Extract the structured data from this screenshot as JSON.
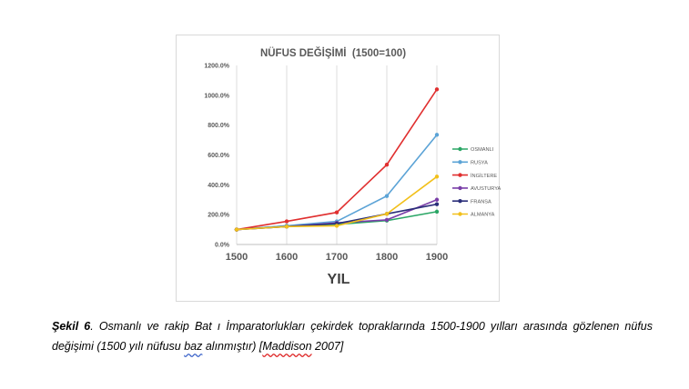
{
  "chart_data": {
    "type": "line",
    "title": "NÜFUS DEĞİŞİMİ  (1500=100)",
    "xlabel": "YIL",
    "ylabel": "",
    "x": [
      1500,
      1600,
      1700,
      1800,
      1900
    ],
    "x_ticks": [
      "1500",
      "1600",
      "1700",
      "1800",
      "1900"
    ],
    "ylim": [
      0,
      1200
    ],
    "y_ticks": [
      0,
      200,
      400,
      600,
      800,
      1000,
      1200
    ],
    "y_tick_labels": [
      "0.0%",
      "200.0%",
      "400.0%",
      "600.0%",
      "800.0%",
      "1000.0%",
      "1200.0%"
    ],
    "grid": "vertical",
    "legend_position": "right",
    "series": [
      {
        "name": "OSMANLI",
        "color": "#2aa665",
        "values": [
          100,
          125,
          135,
          160,
          220
        ]
      },
      {
        "name": "RUSYA",
        "color": "#5ba3d6",
        "values": [
          100,
          125,
          155,
          325,
          735
        ]
      },
      {
        "name": "İNGİLTERE",
        "color": "#e02f2f",
        "values": [
          100,
          155,
          215,
          535,
          1040
        ]
      },
      {
        "name": "AVUSTURYA",
        "color": "#7a3fa8",
        "values": [
          100,
          120,
          145,
          165,
          300
        ]
      },
      {
        "name": "FRANSA",
        "color": "#2b2f7a",
        "values": [
          100,
          120,
          140,
          205,
          270
        ]
      },
      {
        "name": "ALMANYA",
        "color": "#f2c01b",
        "values": [
          100,
          120,
          125,
          205,
          455
        ]
      }
    ]
  },
  "caption": {
    "label": "Şekil 6",
    "text_a": ". Osmanlı ve rakip Bat ı İmparatorlukları çekirdek topraklarında 1500-1900 yılları arasında gözlenen nüfus değişimi (1500 yılı nüfusu ",
    "word_baz": "baz",
    "text_b": " alınmıştır) [",
    "word_maddison": "Maddison",
    "text_c": " 2007]"
  }
}
